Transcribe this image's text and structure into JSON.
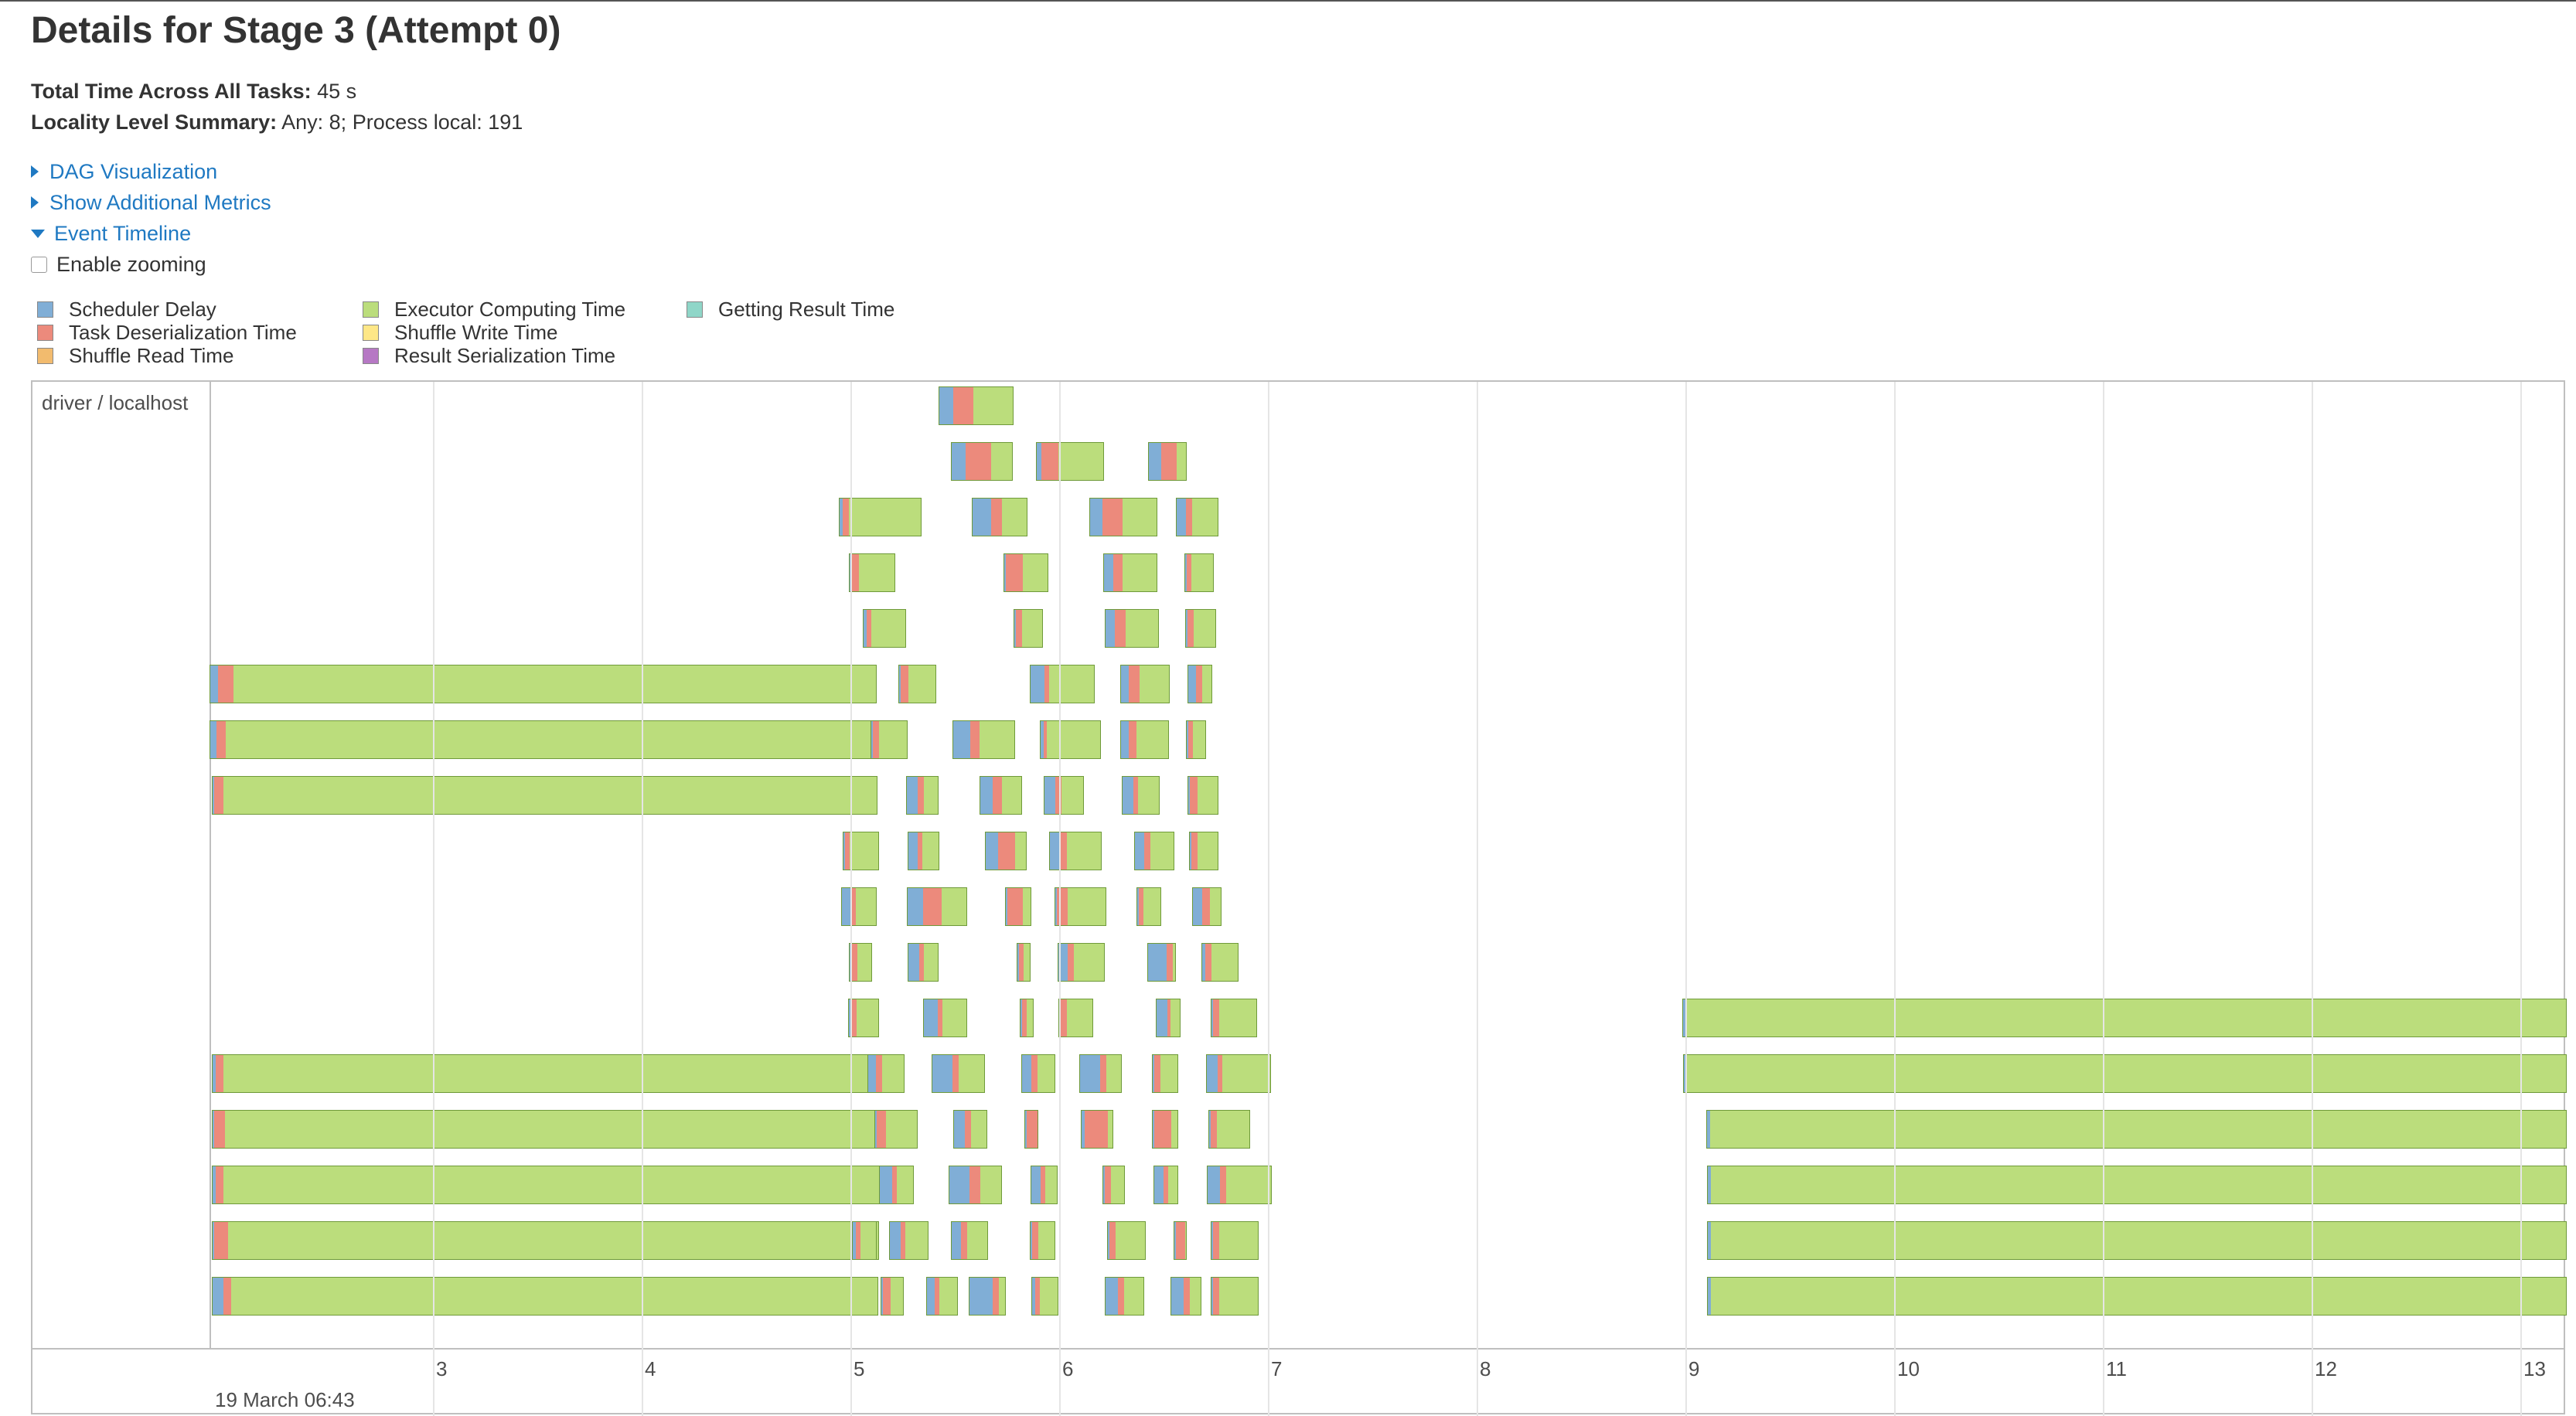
{
  "page": {
    "title": "Details for Stage 3 (Attempt 0)",
    "total_time_label": "Total Time Across All Tasks:",
    "total_time_value": "45 s",
    "locality_label": "Locality Level Summary:",
    "locality_value": "Any: 8; Process local: 191"
  },
  "links": {
    "dag": "DAG Visualization",
    "metrics": "Show Additional Metrics",
    "timeline": "Event Timeline",
    "zoom": "Enable zooming"
  },
  "legend": [
    {
      "label": "Scheduler Delay",
      "color": "#80aed6"
    },
    {
      "label": "Task Deserialization Time",
      "color": "#ec8a7c"
    },
    {
      "label": "Shuffle Read Time",
      "color": "#f2bb6e"
    },
    {
      "label": "Executor Computing Time",
      "color": "#bbdd7c"
    },
    {
      "label": "Shuffle Write Time",
      "color": "#fee787"
    },
    {
      "label": "Result Serialization Time",
      "color": "#b678c4"
    },
    {
      "label": "Getting Result Time",
      "color": "#8fd6c8"
    }
  ],
  "timeline": {
    "group": "driver / localhost",
    "major_label": "19 March 06:43",
    "ticks": [
      "3",
      "4",
      "5",
      "6",
      "7",
      "8",
      "9",
      "10",
      "11",
      "12",
      "13"
    ]
  }
}
